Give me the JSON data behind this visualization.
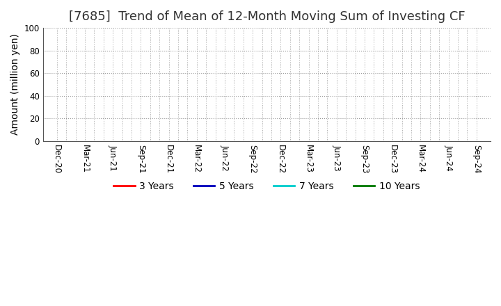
{
  "title": "[7685]  Trend of Mean of 12-Month Moving Sum of Investing CF",
  "ylabel": "Amount (million yen)",
  "ylim": [
    0,
    100
  ],
  "yticks": [
    0,
    20,
    40,
    60,
    80,
    100
  ],
  "x_labels": [
    "Dec-20",
    "Mar-21",
    "Jun-21",
    "Sep-21",
    "Dec-21",
    "Mar-22",
    "Jun-22",
    "Sep-22",
    "Dec-22",
    "Mar-23",
    "Jun-23",
    "Sep-23",
    "Dec-23",
    "Mar-24",
    "Jun-24",
    "Sep-24"
  ],
  "background_color": "#ffffff",
  "plot_bg_color": "#ffffff",
  "grid_color_h": "#999999",
  "grid_color_v": "#aaaaaa",
  "legend_entries": [
    {
      "label": "3 Years",
      "color": "#ff0000"
    },
    {
      "label": "5 Years",
      "color": "#0000bb"
    },
    {
      "label": "7 Years",
      "color": "#00cccc"
    },
    {
      "label": "10 Years",
      "color": "#007700"
    }
  ],
  "title_fontsize": 13,
  "axis_label_fontsize": 10,
  "tick_fontsize": 8.5,
  "legend_fontsize": 10
}
